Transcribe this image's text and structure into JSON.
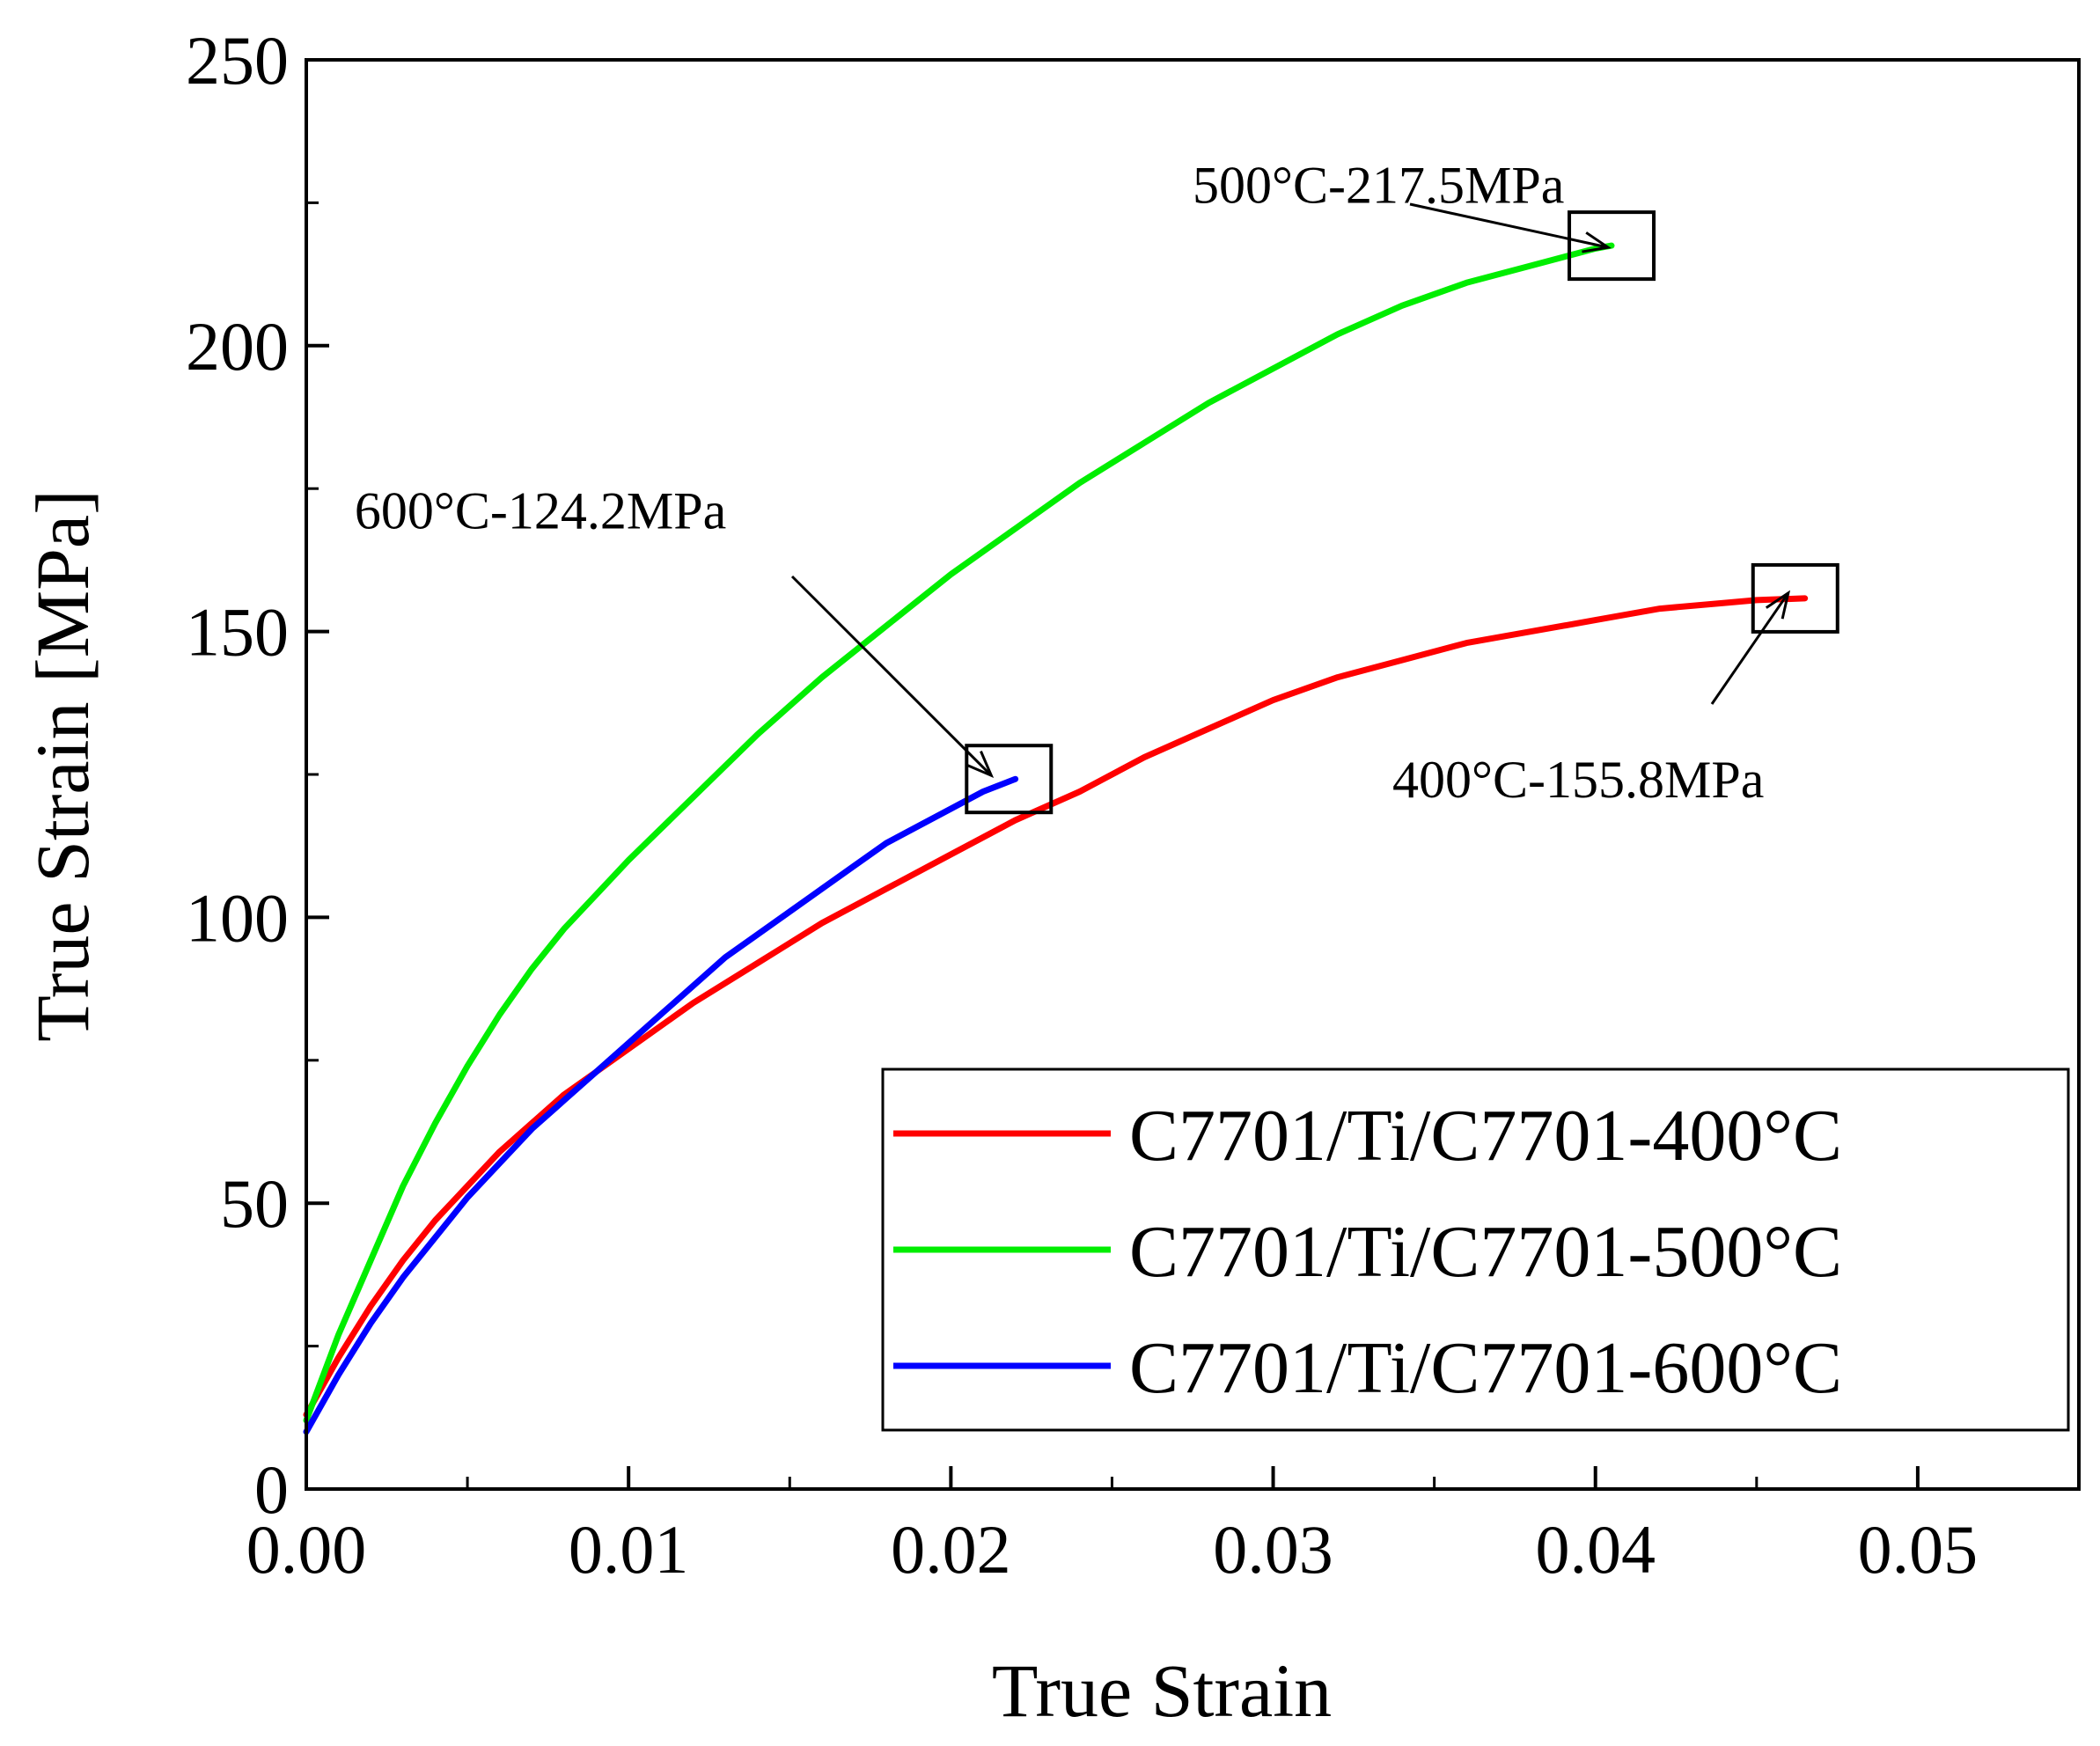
{
  "chart_data": {
    "type": "line",
    "xlabel": "True Strain",
    "ylabel": "True Strain [MPa]",
    "xlim": [
      0,
      0.055
    ],
    "ylim": [
      0,
      250
    ],
    "x_ticks": [
      0.0,
      0.01,
      0.02,
      0.03,
      0.04,
      0.05
    ],
    "x_tick_labels": [
      "0.00",
      "0.01",
      "0.02",
      "0.03",
      "0.04",
      "0.05"
    ],
    "y_ticks": [
      0,
      50,
      100,
      150,
      200,
      250
    ],
    "y_tick_labels": [
      "0",
      "50",
      "100",
      "150",
      "200",
      "250"
    ],
    "legend_position": "bottom-right",
    "series": [
      {
        "name": "C7701/Ti/C7701-400°C",
        "color": "#ff0000",
        "x": [
          0,
          0.001,
          0.002,
          0.003,
          0.004,
          0.005,
          0.006,
          0.007,
          0.008,
          0.009,
          0.01,
          0.012,
          0.014,
          0.016,
          0.018,
          0.02,
          0.022,
          0.024,
          0.026,
          0.028,
          0.03,
          0.032,
          0.034,
          0.036,
          0.038,
          0.04,
          0.042,
          0.044,
          0.045,
          0.0465
        ],
        "y": [
          13,
          23,
          32,
          40,
          47,
          53,
          59,
          64,
          69,
          73,
          77,
          85,
          92,
          99,
          105,
          111,
          117,
          122,
          128,
          133,
          138,
          142,
          145,
          148,
          150,
          152,
          154,
          155,
          155.5,
          155.8
        ]
      },
      {
        "name": "C7701/Ti/C7701-500°C",
        "color": "#00ee00",
        "x": [
          0,
          0.001,
          0.002,
          0.003,
          0.004,
          0.005,
          0.006,
          0.007,
          0.008,
          0.009,
          0.01,
          0.012,
          0.014,
          0.016,
          0.018,
          0.02,
          0.022,
          0.024,
          0.026,
          0.028,
          0.03,
          0.032,
          0.034,
          0.036,
          0.038,
          0.04,
          0.0405
        ],
        "y": [
          12,
          27,
          40,
          53,
          64,
          74,
          83,
          91,
          98,
          104,
          110,
          121,
          132,
          142,
          151,
          160,
          168,
          176,
          183,
          190,
          196,
          202,
          207,
          211,
          214,
          217,
          217.5
        ]
      },
      {
        "name": "C7701/Ti/C7701-600°C",
        "color": "#0000ff",
        "x": [
          0,
          0.001,
          0.002,
          0.003,
          0.004,
          0.005,
          0.006,
          0.007,
          0.008,
          0.009,
          0.01,
          0.011,
          0.012,
          0.013,
          0.014,
          0.015,
          0.016,
          0.017,
          0.018,
          0.019,
          0.02,
          0.021,
          0.022
        ],
        "y": [
          10,
          20,
          29,
          37,
          44,
          51,
          57,
          63,
          68,
          73,
          78,
          83,
          88,
          93,
          97,
          101,
          105,
          109,
          113,
          116,
          119,
          122,
          124.2
        ]
      }
    ],
    "annotations": [
      {
        "text": "500°C-217.5MPa",
        "point": [
          0.0405,
          217.5
        ],
        "text_pos": [
          0.0275,
          225
        ]
      },
      {
        "text": "600°C-124.2MPa",
        "point": [
          0.0218,
          124.2
        ],
        "text_pos": [
          0.0015,
          168
        ]
      },
      {
        "text": "400°C-155.8MPa",
        "point": [
          0.0462,
          155.8
        ],
        "text_pos": [
          0.0337,
          121
        ]
      }
    ]
  }
}
